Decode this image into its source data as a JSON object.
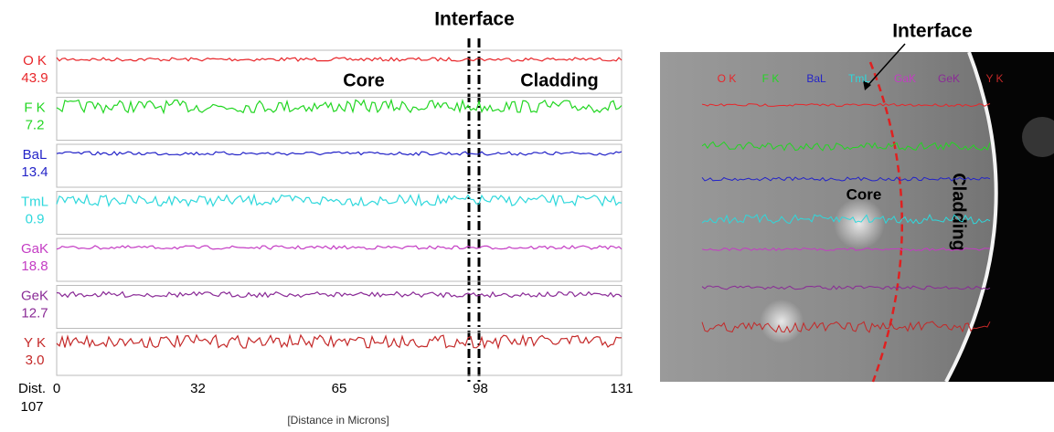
{
  "left_panel": {
    "interface_label": "Interface",
    "region_labels": [
      "Core",
      "Cladding"
    ],
    "channels": [
      {
        "name": "O K",
        "value": "43.9",
        "color": "#e8262a"
      },
      {
        "name": "F K",
        "value": "7.2",
        "color": "#22d622"
      },
      {
        "name": "BaL",
        "value": "13.4",
        "color": "#2424c8"
      },
      {
        "name": "TmL",
        "value": "0.9",
        "color": "#2ed8dc"
      },
      {
        "name": "GaK",
        "value": "18.8",
        "color": "#c43cc4"
      },
      {
        "name": "GeK",
        "value": "12.7",
        "color": "#8a2a96"
      },
      {
        "name": "Y K",
        "value": "3.0",
        "color": "#c42828"
      }
    ],
    "dist_label": "Dist.",
    "dist_value": "107",
    "xticks": [
      "0",
      "32",
      "65",
      "98",
      "131"
    ],
    "xlabel": "[Distance in Microns]"
  },
  "right_panel": {
    "interface_label": "Interface",
    "element_labels": [
      "O K",
      "F K",
      "BaL",
      "TmL",
      "GaK",
      "GeK",
      "Y K"
    ],
    "core_label": "Core",
    "cladding_label": "Cladding"
  }
}
